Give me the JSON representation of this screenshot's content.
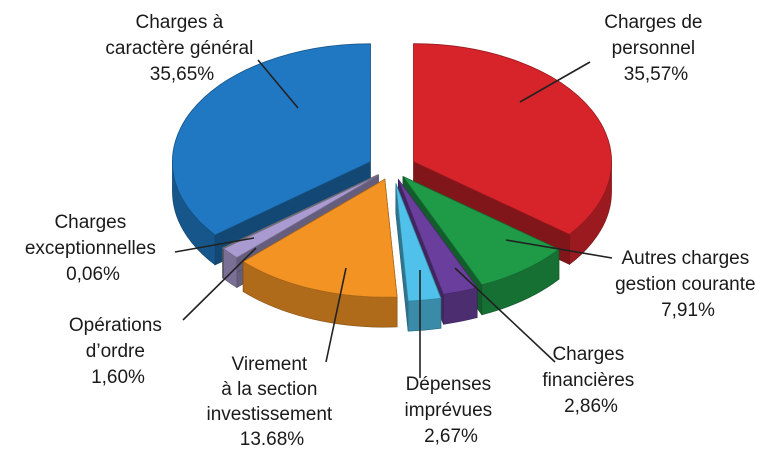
{
  "chart_data": {
    "type": "pie",
    "style": "3d-exploded",
    "title": "",
    "slices": [
      {
        "label": "Charges de personnel",
        "value": 35.57,
        "display": "35,57%",
        "color": "#d7242b"
      },
      {
        "label": "Autres charges gestion courante",
        "value": 7.91,
        "display": "7,91%",
        "color": "#1f9a47"
      },
      {
        "label": "Charges financières",
        "value": 2.86,
        "display": "2,86%",
        "color": "#6a3e9c"
      },
      {
        "label": "Dépenses imprévues",
        "value": 2.67,
        "display": "2,67%",
        "color": "#4fc1ea"
      },
      {
        "label": "Virement à la section investissement",
        "value": 13.68,
        "display": "13.68%",
        "color": "#f39324"
      },
      {
        "label": "Opérations d'ordre",
        "value": 1.6,
        "display": "1,60%",
        "color": "#a99bcf"
      },
      {
        "label": "Charges exceptionnelles",
        "value": 0.06,
        "display": "0,06%",
        "color": "#9a9a9a"
      },
      {
        "label": "Charges à caractère général",
        "value": 35.65,
        "display": "35,65%",
        "color": "#1f78c1"
      }
    ]
  },
  "labels": {
    "personnel": {
      "l1": "Charges de",
      "l2": "personnel",
      "pct": "35,57%"
    },
    "autres": {
      "l1": "Autres charges",
      "l2": "gestion courante",
      "pct": "7,91%"
    },
    "financieres": {
      "l1": "Charges",
      "l2": "financières",
      "pct": "2,86%"
    },
    "imprevues": {
      "l1": "Dépenses",
      "l2": "imprévues",
      "pct": "2,67%"
    },
    "virement": {
      "l1": "Virement",
      "l2": "à la section",
      "l3": "investissement",
      "pct": "13.68%"
    },
    "ordre": {
      "l1": "Opérations",
      "l2": "d’ordre",
      "pct": "1,60%"
    },
    "exceptionnelles": {
      "l1": "Charges",
      "l2": "exceptionnelles",
      "pct": "0,06%"
    },
    "general": {
      "l1": "Charges à",
      "l2": "caractère général",
      "pct": "35,65%"
    }
  }
}
